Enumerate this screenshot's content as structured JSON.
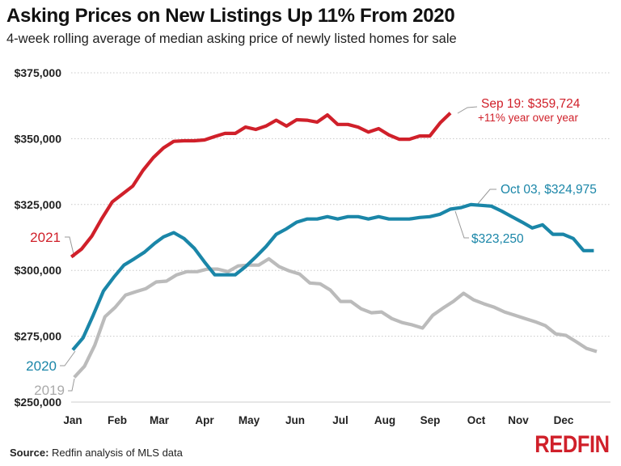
{
  "chart_data": {
    "type": "line",
    "title": "Asking Prices on New Listings Up 11% From 2020",
    "subtitle": "4-week rolling average of median asking price of newly listed homes for sale",
    "xlabel": "",
    "ylabel": "",
    "x_tick_labels": [
      "Jan",
      "Feb",
      "Mar",
      "Apr",
      "May",
      "Jun",
      "Jul",
      "Aug",
      "Sep",
      "Oct",
      "Nov",
      "Dec"
    ],
    "y_ticks": [
      250000,
      275000,
      300000,
      325000,
      350000,
      375000
    ],
    "y_tick_labels": [
      "$250,000",
      "$275,000",
      "$300,000",
      "$325,000",
      "$350,000",
      "$375,000"
    ],
    "ylim": [
      250000,
      375000
    ],
    "grid": "horizontal dotted",
    "series": [
      {
        "name": "2019",
        "color": "#bbbbbb",
        "x": [
          "01-05",
          "01-12",
          "01-19",
          "01-26",
          "02-02",
          "02-09",
          "02-16",
          "02-23",
          "03-02",
          "03-09",
          "03-16",
          "03-23",
          "03-30",
          "04-06",
          "04-13",
          "04-20",
          "04-27",
          "05-04",
          "05-11",
          "05-18",
          "05-25",
          "06-01",
          "06-08",
          "06-15",
          "06-22",
          "06-29",
          "07-06",
          "07-13",
          "07-20",
          "07-27",
          "08-03",
          "08-10",
          "08-17",
          "08-24",
          "08-31",
          "09-07",
          "09-14",
          "09-21",
          "09-28",
          "10-05",
          "10-12",
          "10-19",
          "10-26",
          "11-02",
          "11-09",
          "11-16",
          "11-23",
          "11-30",
          "12-07",
          "12-14",
          "12-21",
          "12-28"
        ],
        "values": [
          259400,
          263600,
          271600,
          282400,
          286000,
          290600,
          291900,
          293100,
          295600,
          295900,
          298300,
          299500,
          299500,
          300500,
          300500,
          299500,
          301700,
          302000,
          302000,
          304400,
          301400,
          299800,
          298600,
          295200,
          294900,
          292500,
          288200,
          288200,
          285400,
          283900,
          284200,
          281700,
          280200,
          279300,
          278100,
          283000,
          285700,
          288200,
          291300,
          288800,
          287300,
          286000,
          284200,
          283000,
          281700,
          280500,
          279000,
          275900,
          275300,
          272900,
          270400,
          269200
        ]
      },
      {
        "name": "2020",
        "color": "#1a86a8",
        "x": [
          "01-04",
          "01-11",
          "01-18",
          "01-25",
          "02-01",
          "02-08",
          "02-15",
          "02-22",
          "02-29",
          "03-07",
          "03-14",
          "03-21",
          "03-28",
          "04-04",
          "04-11",
          "04-18",
          "04-25",
          "05-02",
          "05-09",
          "05-16",
          "05-23",
          "05-30",
          "06-06",
          "06-13",
          "06-20",
          "06-27",
          "07-04",
          "07-11",
          "07-18",
          "07-25",
          "08-01",
          "08-08",
          "08-15",
          "08-22",
          "08-29",
          "09-05",
          "09-12",
          "09-19",
          "09-26",
          "10-03",
          "10-10",
          "10-17",
          "10-24",
          "10-31",
          "11-07",
          "11-14",
          "11-21",
          "11-28",
          "12-05",
          "12-12",
          "12-19",
          "12-26"
        ],
        "values": [
          269800,
          274400,
          283000,
          292200,
          297400,
          302000,
          304400,
          306900,
          310300,
          312700,
          314300,
          312100,
          308400,
          303200,
          298300,
          298300,
          298300,
          301400,
          305100,
          309000,
          313700,
          315800,
          318300,
          319500,
          319500,
          320400,
          319500,
          320400,
          320400,
          319500,
          320400,
          319500,
          319500,
          319500,
          320100,
          320400,
          321300,
          323250,
          323800,
          324975,
          324700,
          324400,
          322500,
          320400,
          318300,
          316100,
          317300,
          313700,
          313700,
          312100,
          307500,
          307500
        ]
      },
      {
        "name": "2021",
        "color": "#d0202a",
        "x": [
          "01-03",
          "01-10",
          "01-17",
          "01-24",
          "01-31",
          "02-07",
          "02-14",
          "02-21",
          "02-28",
          "03-07",
          "03-14",
          "03-21",
          "03-28",
          "04-04",
          "04-11",
          "04-18",
          "04-25",
          "05-02",
          "05-09",
          "05-16",
          "05-23",
          "05-30",
          "06-06",
          "06-13",
          "06-20",
          "06-27",
          "07-04",
          "07-11",
          "07-18",
          "07-25",
          "08-01",
          "08-08",
          "08-15",
          "08-22",
          "08-29",
          "09-05",
          "09-12",
          "09-19"
        ],
        "values": [
          305100,
          308100,
          313000,
          319800,
          326000,
          329000,
          332000,
          338000,
          342800,
          346500,
          349000,
          349200,
          349200,
          349500,
          350800,
          352000,
          352000,
          354400,
          353500,
          354800,
          357000,
          354800,
          357200,
          357000,
          356300,
          359000,
          355400,
          355400,
          354400,
          352500,
          353800,
          351400,
          349800,
          349800,
          351000,
          351000,
          356000,
          359724
        ]
      }
    ],
    "annotations": {
      "red_line1": "Sep 19: $359,724",
      "red_line2": "+11% year over year",
      "blue_peak": "Oct 03, $324,975",
      "blue_point": "$323,250"
    },
    "legend_placement": "inline labels at line starts"
  },
  "footer": {
    "source_label": "Source:",
    "source_text": " Redfin analysis of MLS data",
    "logo": "REDFIN"
  }
}
